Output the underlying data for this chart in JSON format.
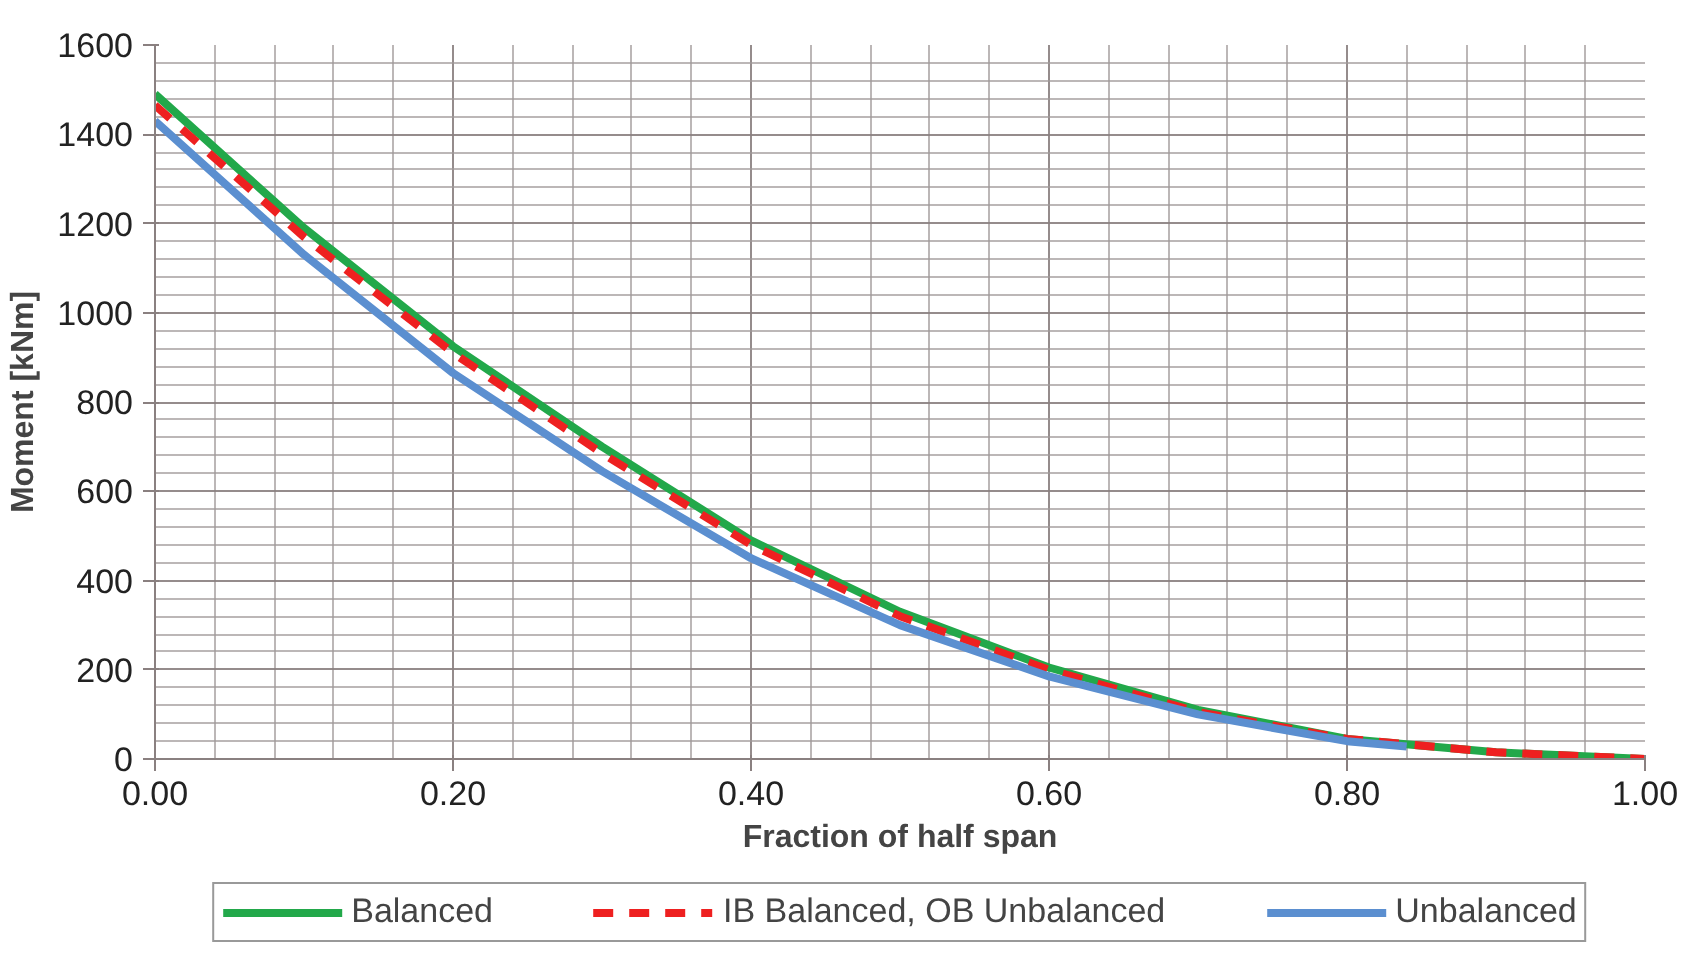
{
  "chart_data": {
    "type": "line",
    "xlabel": "Fraction of half span",
    "ylabel": "Moment [kNm]",
    "x": [
      0,
      0.1,
      0.2,
      0.3,
      0.4,
      0.5,
      0.6,
      0.7,
      0.8,
      0.9,
      1.0
    ],
    "series": [
      {
        "name": "Balanced",
        "color": "#22a84a",
        "line_style": "solid",
        "values": [
          1490,
          1190,
          925,
          700,
          490,
          330,
          205,
          110,
          45,
          15,
          0
        ]
      },
      {
        "name": "IB Balanced, OB Unbalanced",
        "color": "#ee2020",
        "line_style": "dashed",
        "values": [
          1465,
          1170,
          910,
          685,
          480,
          320,
          200,
          105,
          45,
          15,
          0
        ]
      },
      {
        "name": "Unbalanced",
        "color": "#5b8fd0",
        "line_style": "solid",
        "x": [
          0,
          0.1,
          0.2,
          0.3,
          0.4,
          0.5,
          0.6,
          0.7,
          0.8,
          0.84
        ],
        "values": [
          1430,
          1130,
          865,
          645,
          450,
          300,
          185,
          100,
          40,
          28
        ]
      }
    ],
    "xlim": [
      0,
      1
    ],
    "xticks": [
      {
        "value": 0,
        "label": "0.00"
      },
      {
        "value": 0.2,
        "label": "0.20"
      },
      {
        "value": 0.4,
        "label": "0.40"
      },
      {
        "value": 0.6,
        "label": "0.60"
      },
      {
        "value": 0.8,
        "label": "0.80"
      },
      {
        "value": 1,
        "label": "1.00"
      }
    ],
    "ylim": [
      0,
      1600
    ],
    "yticks": [
      0,
      200,
      400,
      600,
      800,
      1000,
      1200,
      1400,
      1600
    ],
    "grid": true,
    "legend": "bottom",
    "marker": "none"
  }
}
